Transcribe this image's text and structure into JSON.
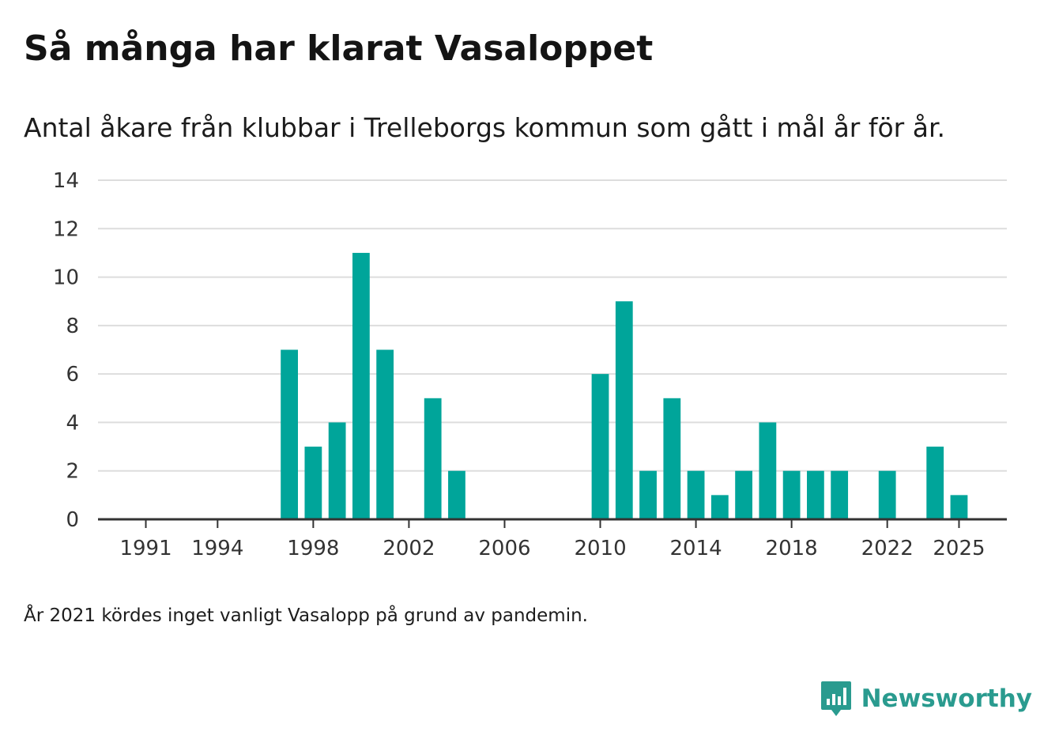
{
  "title": "Så många har klarat Vasaloppet",
  "subtitle": "Antal åkare från klubbar i Trelleborgs kommun som gått i mål år för år.",
  "footnote": "År 2021 kördes inget vanligt Vasalopp på grund av pandemin.",
  "brand": {
    "name": "Newsworthy",
    "icon": "newsworthy-logo-icon"
  },
  "colors": {
    "bar": "#00a59a",
    "grid": "#dddddd",
    "axis": "#333333",
    "brand": "#2a9b8f",
    "text": "#333333"
  },
  "chart_data": {
    "type": "bar",
    "title": "Så många har klarat Vasaloppet",
    "subtitle": "Antal åkare från klubbar i Trelleborgs kommun som gått i mål år för år.",
    "xlabel": "",
    "ylabel": "",
    "ylim": [
      0,
      14
    ],
    "yticks": [
      0,
      2,
      4,
      6,
      8,
      10,
      12,
      14
    ],
    "xlim": [
      1989,
      2027
    ],
    "xticks": [
      1991,
      1994,
      1998,
      2002,
      2006,
      2010,
      2014,
      2018,
      2022,
      2025
    ],
    "grid": true,
    "legend": "none",
    "series": [
      {
        "name": "Antal åkare",
        "x": [
          1997,
          1998,
          1999,
          2000,
          2001,
          2003,
          2004,
          2010,
          2011,
          2012,
          2013,
          2014,
          2015,
          2016,
          2017,
          2018,
          2019,
          2020,
          2022,
          2024,
          2025
        ],
        "values": [
          7,
          3,
          4,
          11,
          7,
          5,
          2,
          6,
          9,
          2,
          5,
          2,
          1,
          2,
          4,
          2,
          2,
          2,
          2,
          3,
          1
        ]
      }
    ]
  }
}
